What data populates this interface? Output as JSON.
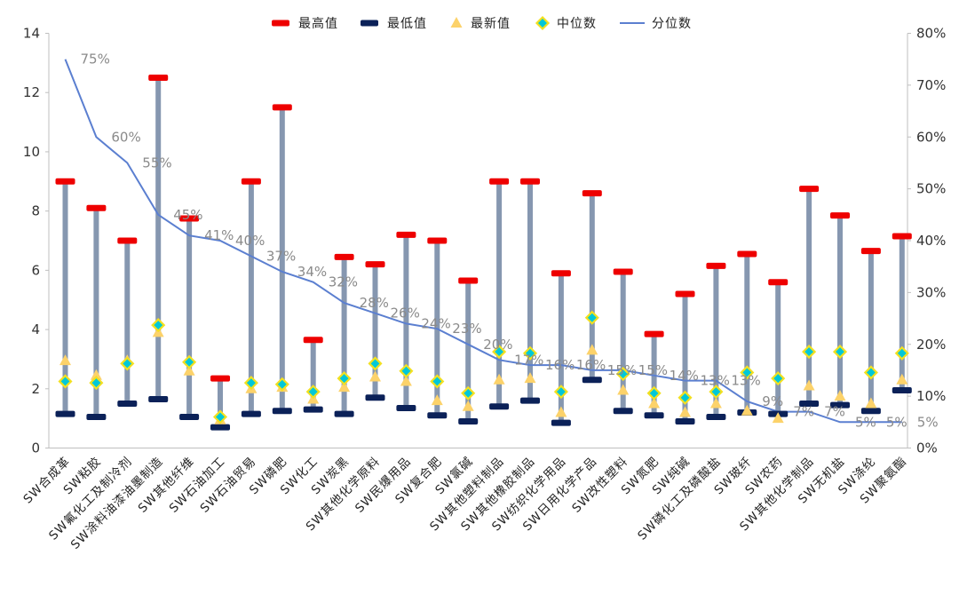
{
  "chart_data": {
    "type": "range-bar-with-markers",
    "categories": [
      "SW合成革",
      "SW粘胶",
      "SW氟化工及制冷剂",
      "SW涂料油漆油墨制造",
      "SW其他纤维",
      "SW石油加工",
      "SW石油贸易",
      "SW磷肥",
      "SW化工",
      "SW炭黑",
      "SW其他化学原料",
      "SW民爆用品",
      "SW复合肥",
      "SW氯碱",
      "SW其他塑料制品",
      "SW其他橡胶制品",
      "SW纺织化学用品",
      "SW日用化学产品",
      "SW改性塑料",
      "SW氮肥",
      "SW纯碱",
      "SW磷化工及磷酸盐",
      "SW玻纤",
      "SW农药",
      "SW其他化学制品",
      "SW无机盐",
      "SW涤纶",
      "SW聚氨酯"
    ],
    "series": [
      {
        "name": "最高值",
        "values": [
          9.0,
          8.1,
          7.0,
          12.5,
          7.75,
          2.35,
          9.0,
          11.5,
          3.65,
          6.45,
          6.2,
          7.2,
          7.0,
          5.65,
          9.0,
          9.0,
          5.9,
          8.6,
          5.95,
          3.85,
          5.2,
          6.15,
          6.55,
          5.6,
          8.75,
          7.85,
          6.65,
          7.15
        ]
      },
      {
        "name": "最低值",
        "values": [
          1.15,
          1.05,
          1.5,
          1.65,
          1.05,
          0.7,
          1.15,
          1.25,
          1.3,
          1.15,
          1.7,
          1.35,
          1.1,
          0.9,
          1.4,
          1.6,
          0.85,
          2.3,
          1.25,
          1.1,
          0.9,
          1.05,
          1.2,
          1.15,
          1.5,
          1.45,
          1.25,
          1.95
        ]
      },
      {
        "name": "最新值",
        "values": [
          2.95,
          2.45,
          2.95,
          3.9,
          2.6,
          0.95,
          2.0,
          2.05,
          1.65,
          2.05,
          2.4,
          2.25,
          1.6,
          1.4,
          2.3,
          2.35,
          1.2,
          3.3,
          1.95,
          1.5,
          1.2,
          1.5,
          1.25,
          1.0,
          2.1,
          1.75,
          1.5,
          2.3
        ]
      },
      {
        "name": "中位数",
        "values": [
          2.25,
          2.2,
          2.85,
          4.15,
          2.9,
          1.05,
          2.2,
          2.15,
          1.9,
          2.35,
          2.85,
          2.6,
          2.25,
          1.85,
          3.25,
          3.2,
          1.9,
          4.4,
          2.5,
          1.85,
          1.7,
          1.9,
          2.55,
          2.35,
          3.25,
          3.25,
          2.55,
          3.2
        ]
      },
      {
        "name": "分位数",
        "values": [
          75,
          60,
          55,
          45,
          41,
          40,
          37,
          34,
          32,
          28,
          26,
          24,
          23,
          20,
          17,
          16,
          16,
          15,
          15,
          14,
          13,
          13,
          9,
          7,
          7,
          5,
          5,
          5
        ]
      }
    ],
    "percent_labels": [
      "75%",
      "60%",
      "55%",
      "45%",
      "41%",
      "40%",
      "37%",
      "34%",
      "32%",
      "28%",
      "26%",
      "24%",
      "23%",
      "20%",
      "17%",
      "16%",
      "16%",
      "15%",
      "15%",
      "14%",
      "13%",
      "13%",
      "9%",
      "7%",
      "7%",
      "5%",
      "5%",
      "5%"
    ],
    "y_left": {
      "min": 0,
      "max": 14,
      "ticks": [
        "0",
        "2",
        "4",
        "6",
        "8",
        "10",
        "12",
        "14"
      ]
    },
    "y_right": {
      "min": 0,
      "max": 80,
      "ticks": [
        "0%",
        "10%",
        "20%",
        "30%",
        "40%",
        "50%",
        "60%",
        "70%",
        "80%"
      ]
    },
    "legend": [
      "最高值",
      "最低值",
      "最新值",
      "中位数",
      "分位数"
    ],
    "legend_position": "top",
    "grid": false
  },
  "colors": {
    "high": "#ee0000",
    "low": "#0b2158",
    "latest": "#fcd26a",
    "median_fill": "#00c8d8",
    "median_stroke": "#f2e020",
    "percentile_line": "#5b7fd0",
    "range_bar": "#8697b0",
    "axis": "#bfbfbf",
    "percent_label": "#8a8a8a"
  }
}
